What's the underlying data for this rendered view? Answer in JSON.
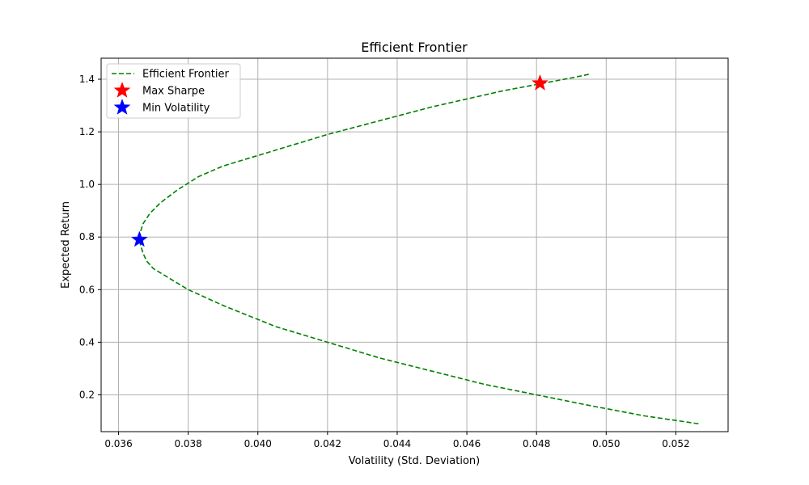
{
  "chart_data": {
    "type": "line",
    "title": "Efficient Frontier",
    "xlabel": "Volatility (Std. Deviation)",
    "ylabel": "Expected Return",
    "xlim": [
      0.0355,
      0.0535
    ],
    "ylim": [
      0.06,
      1.48
    ],
    "xticks": [
      0.036,
      0.038,
      0.04,
      0.042,
      0.044,
      0.046,
      0.048,
      0.05,
      0.052
    ],
    "xtick_labels": [
      "0.036",
      "0.038",
      "0.040",
      "0.042",
      "0.044",
      "0.046",
      "0.048",
      "0.050",
      "0.052"
    ],
    "yticks": [
      0.2,
      0.4,
      0.6,
      0.8,
      1.0,
      1.2,
      1.4
    ],
    "ytick_labels": [
      "0.2",
      "0.4",
      "0.6",
      "0.8",
      "1.0",
      "1.2",
      "1.4"
    ],
    "grid": true,
    "legend_position": "top-left",
    "series": [
      {
        "name": "Efficient Frontier",
        "style": "dashed",
        "color": "#008000",
        "x": [
          0.05265,
          0.0511,
          0.0495,
          0.048,
          0.0465,
          0.045,
          0.0435,
          0.042,
          0.0405,
          0.039,
          0.038,
          0.0375,
          0.037,
          0.0368,
          0.0367,
          0.03663,
          0.0366,
          0.03663,
          0.0367,
          0.0369,
          0.0372,
          0.0377,
          0.0383,
          0.039,
          0.04,
          0.041,
          0.042,
          0.043,
          0.044,
          0.045,
          0.046,
          0.047,
          0.048,
          0.049,
          0.04955
        ],
        "y": [
          0.09,
          0.12,
          0.16,
          0.2,
          0.24,
          0.29,
          0.34,
          0.4,
          0.46,
          0.54,
          0.6,
          0.64,
          0.68,
          0.71,
          0.74,
          0.77,
          0.79,
          0.82,
          0.85,
          0.89,
          0.93,
          0.98,
          1.03,
          1.07,
          1.11,
          1.15,
          1.19,
          1.225,
          1.26,
          1.295,
          1.325,
          1.355,
          1.38,
          1.405,
          1.42
        ]
      }
    ],
    "markers": [
      {
        "name": "Max Sharpe",
        "x": 0.0481,
        "y": 1.385,
        "color": "#ff0000",
        "shape": "star"
      },
      {
        "name": "Min Volatility",
        "x": 0.0366,
        "y": 0.79,
        "color": "#0000ff",
        "shape": "star"
      }
    ],
    "legend": [
      {
        "label": "Efficient Frontier",
        "kind": "line",
        "color": "#008000"
      },
      {
        "label": "Max Sharpe",
        "kind": "star",
        "color": "#ff0000"
      },
      {
        "label": "Min Volatility",
        "kind": "star",
        "color": "#0000ff"
      }
    ]
  }
}
